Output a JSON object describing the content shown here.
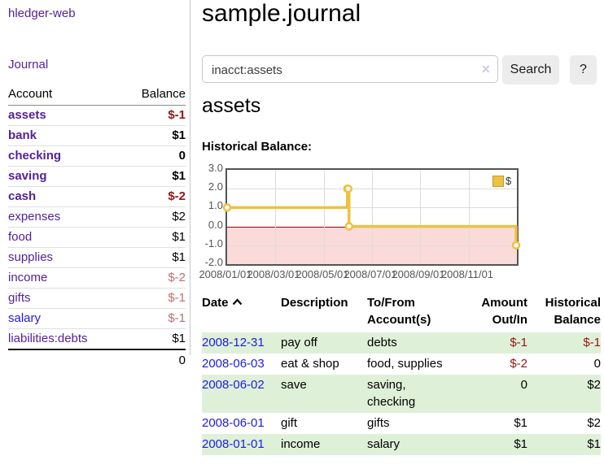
{
  "colors": {
    "link_purple": "#54219b",
    "link_blue": "#1c1ce6",
    "negative_strong": "#941414",
    "negative_muted": "#bd6e6e",
    "row_stripe_green": "#dff0d8",
    "chart_line_gold": "#edc240",
    "chart_negative_bg": "#fbdada",
    "chart_zero_line": "#a40000",
    "chart_border": "#545454",
    "button_bg": "#ececec"
  },
  "sidebar": {
    "brand": "hledger-web",
    "journal_link": "Journal",
    "columns": {
      "account": "Account",
      "balance": "Balance"
    },
    "accounts": [
      {
        "name": "assets",
        "balance": "$-1"
      },
      {
        "name": "bank",
        "balance": "$1"
      },
      {
        "name": "checking",
        "balance": "0"
      },
      {
        "name": "saving",
        "balance": "$1"
      },
      {
        "name": "cash",
        "balance": "$-2"
      },
      {
        "name": "expenses",
        "balance": "$2"
      },
      {
        "name": "food",
        "balance": "$1"
      },
      {
        "name": "supplies",
        "balance": "$1"
      },
      {
        "name": "income",
        "balance": "$-2"
      },
      {
        "name": "gifts",
        "balance": "$-1"
      },
      {
        "name": "salary",
        "balance": "$-1"
      },
      {
        "name": "liabilities:debts",
        "balance": "$1"
      }
    ],
    "total": "0"
  },
  "header": {
    "title": "sample.journal"
  },
  "search": {
    "value": "inacct:assets",
    "clear_icon": "×",
    "search_button": "Search",
    "help_button": "?"
  },
  "account_page": {
    "heading": "assets",
    "chart_title": "Historical Balance:"
  },
  "chart_data": {
    "type": "line",
    "title": "Historical Balance",
    "series": [
      {
        "name": "$",
        "color": "#edc240",
        "step": true,
        "points": [
          [
            "2008-01-01",
            1
          ],
          [
            "2008-06-01",
            2
          ],
          [
            "2008-06-02",
            2
          ],
          [
            "2008-06-03",
            0
          ],
          [
            "2008-12-31",
            -1
          ]
        ]
      }
    ],
    "x_range": [
      "2008-01-01",
      "2009-01-01"
    ],
    "ylim": [
      -2,
      3
    ],
    "yticks": [
      "3.0",
      "2.0",
      "1.0",
      "0.0",
      "-1.0",
      "-2.0"
    ],
    "xticks": [
      "2008/01/01",
      "2008/03/01",
      "2008/05/01",
      "2008/07/01",
      "2008/09/01",
      "2008/11/01"
    ],
    "legend": {
      "label": "$",
      "position": "top-right"
    },
    "grid": true,
    "negative_region_shaded": true
  },
  "register": {
    "headers": {
      "date": "Date",
      "description": "Description",
      "tofrom": "To/From Account(s)",
      "amount": "Amount Out/In",
      "balance": "Historical Balance"
    },
    "rows": [
      {
        "date": "2008-12-31",
        "description": "pay off",
        "accounts": "debts",
        "amount": "$-1",
        "balance": "$-1"
      },
      {
        "date": "2008-06-03",
        "description": "eat & shop",
        "accounts": "food, supplies",
        "amount": "$-2",
        "balance": "0"
      },
      {
        "date": "2008-06-02",
        "description": "save",
        "accounts": "saving, checking",
        "amount": "0",
        "balance": "$2"
      },
      {
        "date": "2008-06-01",
        "description": "gift",
        "accounts": "gifts",
        "amount": "$1",
        "balance": "$2"
      },
      {
        "date": "2008-01-01",
        "description": "income",
        "accounts": "salary",
        "amount": "$1",
        "balance": "$1"
      }
    ]
  }
}
